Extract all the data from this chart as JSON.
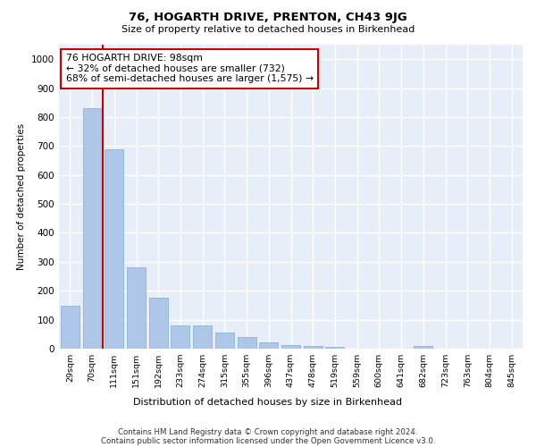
{
  "title": "76, HOGARTH DRIVE, PRENTON, CH43 9JG",
  "subtitle": "Size of property relative to detached houses in Birkenhead",
  "xlabel": "Distribution of detached houses by size in Birkenhead",
  "ylabel": "Number of detached properties",
  "bar_color": "#aec6e8",
  "bar_edge_color": "#7bafd4",
  "background_color": "#e8eef7",
  "grid_color": "#ffffff",
  "annotation_box_color": "#cc0000",
  "vline_color": "#cc0000",
  "vline_x": 1.5,
  "annotation_text": "76 HOGARTH DRIVE: 98sqm\n← 32% of detached houses are smaller (732)\n68% of semi-detached houses are larger (1,575) →",
  "categories": [
    "29sqm",
    "70sqm",
    "111sqm",
    "151sqm",
    "192sqm",
    "233sqm",
    "274sqm",
    "315sqm",
    "355sqm",
    "396sqm",
    "437sqm",
    "478sqm",
    "519sqm",
    "559sqm",
    "600sqm",
    "641sqm",
    "682sqm",
    "723sqm",
    "763sqm",
    "804sqm",
    "845sqm"
  ],
  "values": [
    148,
    830,
    690,
    280,
    175,
    80,
    80,
    55,
    40,
    22,
    13,
    8,
    7,
    0,
    0,
    0,
    10,
    0,
    0,
    0,
    0
  ],
  "ylim": [
    0,
    1050
  ],
  "yticks": [
    0,
    100,
    200,
    300,
    400,
    500,
    600,
    700,
    800,
    900,
    1000
  ],
  "footnote1": "Contains HM Land Registry data © Crown copyright and database right 2024.",
  "footnote2": "Contains public sector information licensed under the Open Government Licence v3.0."
}
